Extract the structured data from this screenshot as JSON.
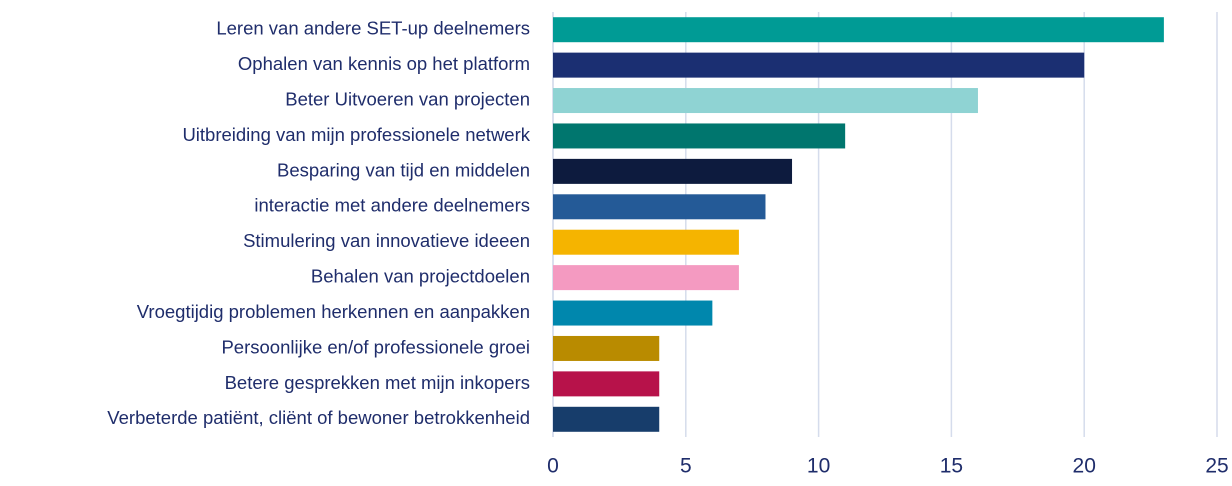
{
  "chart_data": {
    "type": "barh",
    "categories": [
      "Leren van andere SET-up deelnemers",
      "Ophalen van kennis op het platform",
      "Beter Uitvoeren van projecten",
      "Uitbreiding van mijn professionele netwerk",
      "Besparing van tijd en middelen",
      "interactie met andere deelnemers",
      "Stimulering van innovatieve ideeen",
      "Behalen van projectdoelen",
      "Vroegtijdig problemen herkennen en aanpakken",
      "Persoonlijke en/of professionele groei",
      "Betere gesprekken met mijn inkopers",
      "Verbeterde patiënt, cliënt of bewoner betrokkenheid"
    ],
    "values": [
      23,
      20,
      16,
      11,
      9,
      8,
      7,
      7,
      6,
      4,
      4,
      4
    ],
    "colors": [
      "#009b95",
      "#1b2f72",
      "#8fd3d3",
      "#00766e",
      "#0d1b3e",
      "#245a97",
      "#f5b400",
      "#f49ac1",
      "#0087ad",
      "#b98b00",
      "#b7124a",
      "#173d6b"
    ],
    "xlim": [
      0,
      25
    ],
    "xticks": [
      0,
      5,
      10,
      15,
      20,
      25
    ],
    "grid": true
  }
}
